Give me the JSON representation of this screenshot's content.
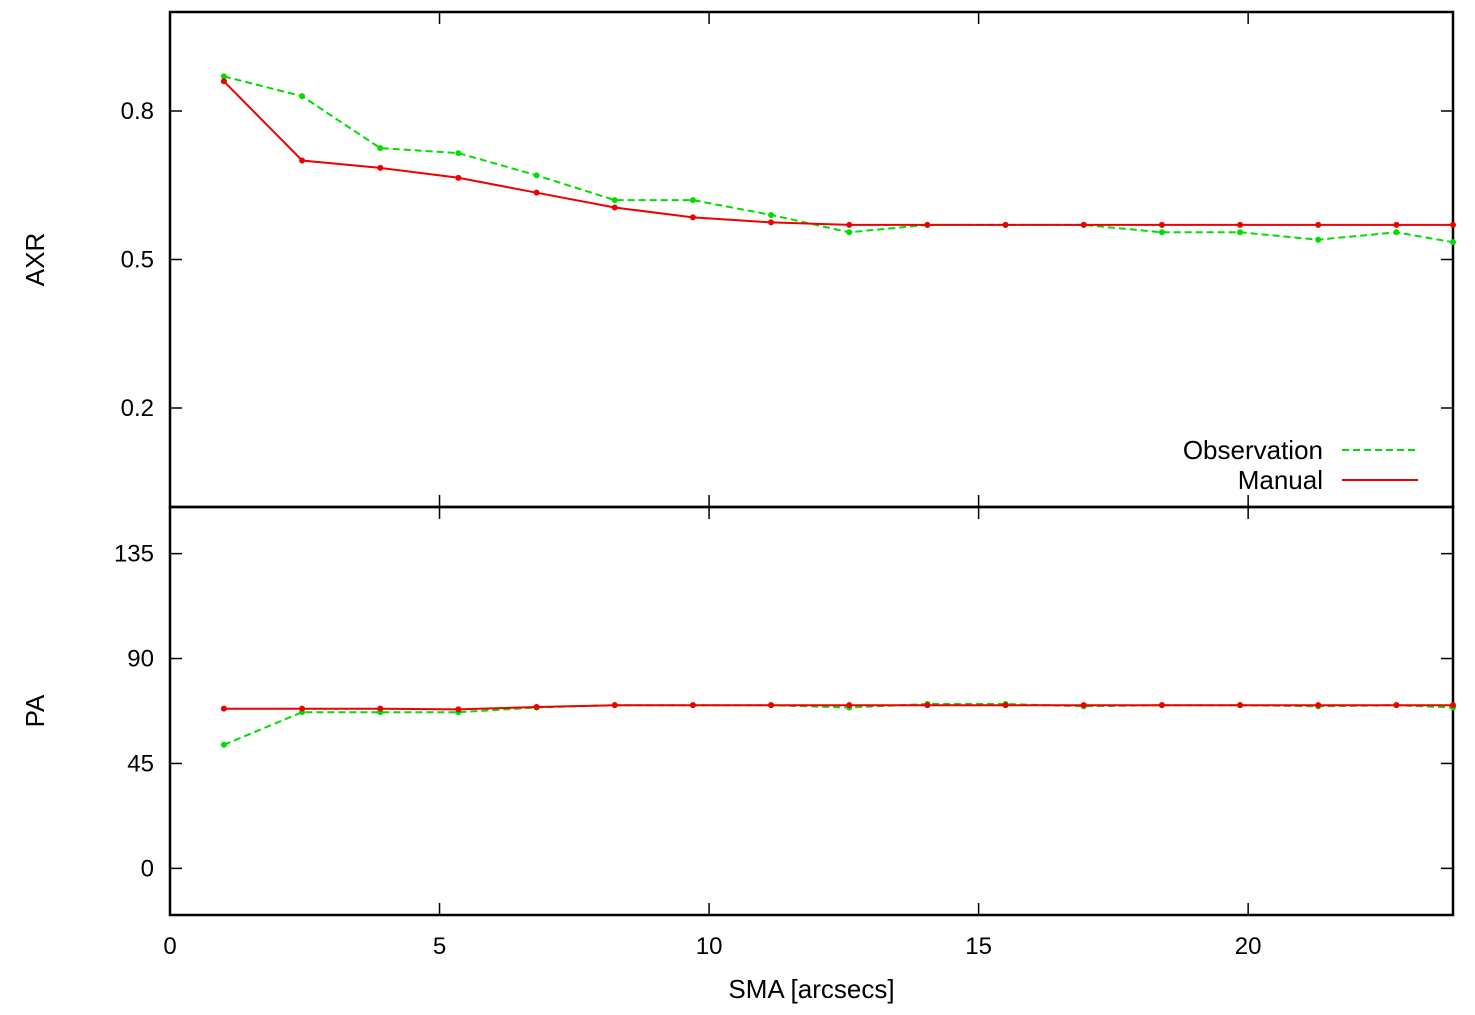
{
  "chart_data": [
    {
      "type": "line",
      "panel": "top",
      "ylabel": "AXR",
      "xlabel": "",
      "xlim": [
        0,
        23.8
      ],
      "ylim": [
        0.0,
        1.0
      ],
      "yticks": [
        0.2,
        0.5,
        0.8
      ],
      "ytick_labels": [
        "0.2",
        "0.5",
        "0.8"
      ],
      "xticks": [
        5,
        10,
        15,
        20
      ],
      "grid": false,
      "legend_position": "bottom-right",
      "series": [
        {
          "name": "Observation",
          "style": "dashed",
          "color": "#00dd00",
          "x": [
            1.0,
            2.45,
            3.9,
            5.35,
            6.8,
            8.25,
            9.7,
            11.15,
            12.6,
            14.05,
            15.5,
            16.95,
            18.4,
            19.85,
            21.3,
            22.75,
            23.8
          ],
          "y": [
            0.87,
            0.83,
            0.725,
            0.715,
            0.67,
            0.62,
            0.62,
            0.59,
            0.555,
            0.57,
            0.57,
            0.57,
            0.555,
            0.555,
            0.54,
            0.555,
            0.535
          ]
        },
        {
          "name": "Manual",
          "style": "solid",
          "color": "#ee0000",
          "x": [
            1.0,
            2.45,
            3.9,
            5.35,
            6.8,
            8.25,
            9.7,
            11.15,
            12.6,
            14.05,
            15.5,
            16.95,
            18.4,
            19.85,
            21.3,
            22.75,
            23.8
          ],
          "y": [
            0.86,
            0.7,
            0.685,
            0.665,
            0.635,
            0.605,
            0.585,
            0.575,
            0.57,
            0.57,
            0.57,
            0.57,
            0.57,
            0.57,
            0.57,
            0.57,
            0.57
          ]
        }
      ]
    },
    {
      "type": "line",
      "panel": "bottom",
      "ylabel": "PA",
      "xlabel": "SMA [arcsecs]",
      "xlim": [
        0,
        23.8
      ],
      "ylim": [
        -20,
        155
      ],
      "yticks": [
        0,
        45,
        90,
        135
      ],
      "ytick_labels": [
        "0",
        "45",
        "90",
        "135"
      ],
      "xticks": [
        0,
        5,
        10,
        15,
        20
      ],
      "xtick_labels": [
        "0",
        "5",
        "10",
        "15",
        "20"
      ],
      "grid": false,
      "series": [
        {
          "name": "Observation",
          "style": "dashed",
          "color": "#00dd00",
          "x": [
            1.0,
            2.45,
            3.9,
            5.35,
            6.8,
            8.25,
            9.7,
            11.15,
            12.6,
            14.05,
            15.5,
            16.95,
            18.4,
            19.85,
            21.3,
            22.75,
            23.8
          ],
          "y": [
            53,
            67,
            67,
            67,
            69,
            70,
            70,
            70,
            69,
            70.5,
            70.5,
            69.5,
            70,
            70,
            69.5,
            70,
            69
          ]
        },
        {
          "name": "Manual",
          "style": "solid",
          "color": "#ee0000",
          "x": [
            1.0,
            2.45,
            3.9,
            5.35,
            6.8,
            8.25,
            9.7,
            11.15,
            12.6,
            14.05,
            15.5,
            16.95,
            18.4,
            19.85,
            21.3,
            22.75,
            23.8
          ],
          "y": [
            68.5,
            68.5,
            68.5,
            68.2,
            69.2,
            70,
            70,
            70,
            70,
            70,
            70,
            70,
            70,
            70,
            70,
            70,
            70
          ]
        }
      ]
    }
  ]
}
